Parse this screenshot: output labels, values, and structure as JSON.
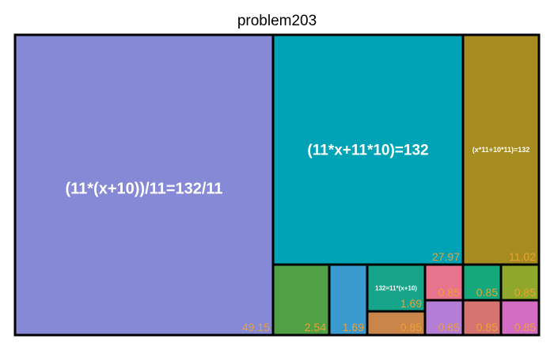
{
  "chart_data": {
    "type": "treemap",
    "title": "problem203",
    "value_label_color": "#f0a030",
    "leaf_label_color": "#ffffff",
    "items": [
      {
        "label": "(11*(x+10))/11=132/11",
        "value": 49.15,
        "color": "#8589d6"
      },
      {
        "label": "(11*x+11*10)=132",
        "value": 27.97,
        "color": "#00a3b6"
      },
      {
        "label": "(x*11+10*11)=132",
        "value": 11.02,
        "color": "#a68b1e"
      },
      {
        "label": "",
        "value": 2.54,
        "color": "#50a146"
      },
      {
        "label": "",
        "value": 1.69,
        "color": "#3a9ad0"
      },
      {
        "label": "132=11*(x+10)",
        "value": 1.69,
        "color": "#16a48a"
      },
      {
        "label": "",
        "value": 0.85,
        "color": "#c9854a"
      },
      {
        "label": "",
        "value": 0.85,
        "color": "#e7738d"
      },
      {
        "label": "",
        "value": 0.85,
        "color": "#b57ed6"
      },
      {
        "label": "",
        "value": 0.85,
        "color": "#14a87a"
      },
      {
        "label": "",
        "value": 0.85,
        "color": "#d4736f"
      },
      {
        "label": "",
        "value": 0.85,
        "color": "#8fa72a"
      },
      {
        "label": "",
        "value": 0.85,
        "color": "#d36cc3"
      }
    ]
  }
}
